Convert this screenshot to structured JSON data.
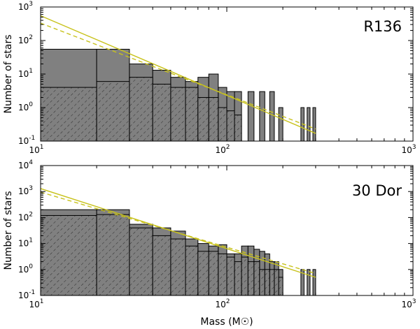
{
  "chart_data": [
    {
      "type": "bar",
      "title": "R136",
      "xlabel": "Mass (M☉)",
      "ylabel": "Number of stars",
      "xscale": "log",
      "yscale": "log",
      "xlim": [
        10,
        1000
      ],
      "ylim": [
        0.1,
        1000
      ],
      "x_ticks": [
        {
          "v": 10,
          "b": "10",
          "e": "1"
        },
        {
          "v": 100,
          "b": "10",
          "e": "2"
        },
        {
          "v": 1000,
          "b": "10",
          "e": "3"
        }
      ],
      "y_ticks": [
        {
          "v": 0.1,
          "b": "10",
          "e": "-1"
        },
        {
          "v": 1,
          "b": "10",
          "e": "0"
        },
        {
          "v": 10,
          "b": "10",
          "e": "1"
        },
        {
          "v": 100,
          "b": "10",
          "e": "2"
        },
        {
          "v": 1000,
          "b": "10",
          "e": "3"
        }
      ],
      "bins": [
        {
          "lo": 10,
          "hi": 20,
          "total": 55,
          "inner": 4
        },
        {
          "lo": 20,
          "hi": 30,
          "total": 55,
          "inner": 6
        },
        {
          "lo": 30,
          "hi": 40,
          "total": 20,
          "inner": 8
        },
        {
          "lo": 40,
          "hi": 50,
          "total": 13,
          "inner": 5
        },
        {
          "lo": 50,
          "hi": 60,
          "total": 8,
          "inner": 4
        },
        {
          "lo": 60,
          "hi": 70,
          "total": 6,
          "inner": 4
        },
        {
          "lo": 70,
          "hi": 80,
          "total": 8,
          "inner": 2
        },
        {
          "lo": 80,
          "hi": 90,
          "total": 10,
          "inner": 2
        },
        {
          "lo": 90,
          "hi": 100,
          "total": 4,
          "inner": 1
        },
        {
          "lo": 100,
          "hi": 110,
          "total": 3,
          "inner": 0.8
        },
        {
          "lo": 110,
          "hi": 120,
          "total": 3,
          "inner": 0.6
        },
        {
          "lo": 130,
          "hi": 140,
          "total": 3,
          "inner": 0
        },
        {
          "lo": 150,
          "hi": 160,
          "total": 3,
          "inner": 0
        },
        {
          "lo": 170,
          "hi": 180,
          "total": 3,
          "inner": 0
        },
        {
          "lo": 190,
          "hi": 200,
          "total": 1,
          "inner": 0
        },
        {
          "lo": 250,
          "hi": 260,
          "total": 1,
          "inner": 0
        },
        {
          "lo": 270,
          "hi": 280,
          "total": 1,
          "inner": 0
        },
        {
          "lo": 290,
          "hi": 300,
          "total": 1,
          "inner": 0
        }
      ],
      "fits": [
        {
          "style": "solid",
          "x": [
            10,
            300
          ],
          "y": [
            550,
            0.17
          ]
        },
        {
          "style": "dashed",
          "x": [
            10,
            300
          ],
          "y": [
            330,
            0.23
          ]
        }
      ]
    },
    {
      "type": "bar",
      "title": "30 Dor",
      "xlabel": "Mass (M☉)",
      "ylabel": "Number of stars",
      "xscale": "log",
      "yscale": "log",
      "xlim": [
        10,
        1000
      ],
      "ylim": [
        0.1,
        10000
      ],
      "x_ticks": [
        {
          "v": 10,
          "b": "10",
          "e": "1"
        },
        {
          "v": 100,
          "b": "10",
          "e": "2"
        },
        {
          "v": 1000,
          "b": "10",
          "e": "3"
        }
      ],
      "y_ticks": [
        {
          "v": 0.1,
          "b": "10",
          "e": "-1"
        },
        {
          "v": 1,
          "b": "10",
          "e": "0"
        },
        {
          "v": 10,
          "b": "10",
          "e": "1"
        },
        {
          "v": 100,
          "b": "10",
          "e": "2"
        },
        {
          "v": 1000,
          "b": "10",
          "e": "3"
        },
        {
          "v": 10000,
          "b": "10",
          "e": "4"
        }
      ],
      "bins": [
        {
          "lo": 10,
          "hi": 20,
          "total": 200,
          "inner": 120
        },
        {
          "lo": 20,
          "hi": 30,
          "total": 200,
          "inner": 130
        },
        {
          "lo": 30,
          "hi": 40,
          "total": 55,
          "inner": 40
        },
        {
          "lo": 40,
          "hi": 50,
          "total": 40,
          "inner": 20
        },
        {
          "lo": 50,
          "hi": 60,
          "total": 30,
          "inner": 15
        },
        {
          "lo": 60,
          "hi": 70,
          "total": 15,
          "inner": 8
        },
        {
          "lo": 70,
          "hi": 80,
          "total": 10,
          "inner": 5
        },
        {
          "lo": 80,
          "hi": 90,
          "total": 8,
          "inner": 5
        },
        {
          "lo": 90,
          "hi": 100,
          "total": 9,
          "inner": 4
        },
        {
          "lo": 100,
          "hi": 110,
          "total": 4,
          "inner": 3
        },
        {
          "lo": 110,
          "hi": 120,
          "total": 4,
          "inner": 2
        },
        {
          "lo": 120,
          "hi": 130,
          "total": 8,
          "inner": 3
        },
        {
          "lo": 130,
          "hi": 140,
          "total": 8,
          "inner": 2
        },
        {
          "lo": 140,
          "hi": 150,
          "total": 6,
          "inner": 2
        },
        {
          "lo": 150,
          "hi": 160,
          "total": 5,
          "inner": 1
        },
        {
          "lo": 160,
          "hi": 170,
          "total": 4,
          "inner": 1
        },
        {
          "lo": 170,
          "hi": 180,
          "total": 2,
          "inner": 1
        },
        {
          "lo": 180,
          "hi": 190,
          "total": 2,
          "inner": 1
        },
        {
          "lo": 190,
          "hi": 200,
          "total": 1,
          "inner": 0.5
        },
        {
          "lo": 250,
          "hi": 260,
          "total": 1,
          "inner": 0
        },
        {
          "lo": 270,
          "hi": 280,
          "total": 1,
          "inner": 0
        },
        {
          "lo": 290,
          "hi": 300,
          "total": 1,
          "inner": 0
        }
      ],
      "fits": [
        {
          "style": "solid",
          "x": [
            10,
            300
          ],
          "y": [
            1300,
            0.5
          ]
        },
        {
          "style": "dashed",
          "x": [
            10,
            300
          ],
          "y": [
            950,
            0.7
          ]
        }
      ]
    }
  ],
  "colors": {
    "bar_fill": "#808080",
    "fit_line": "#c8c21c"
  }
}
